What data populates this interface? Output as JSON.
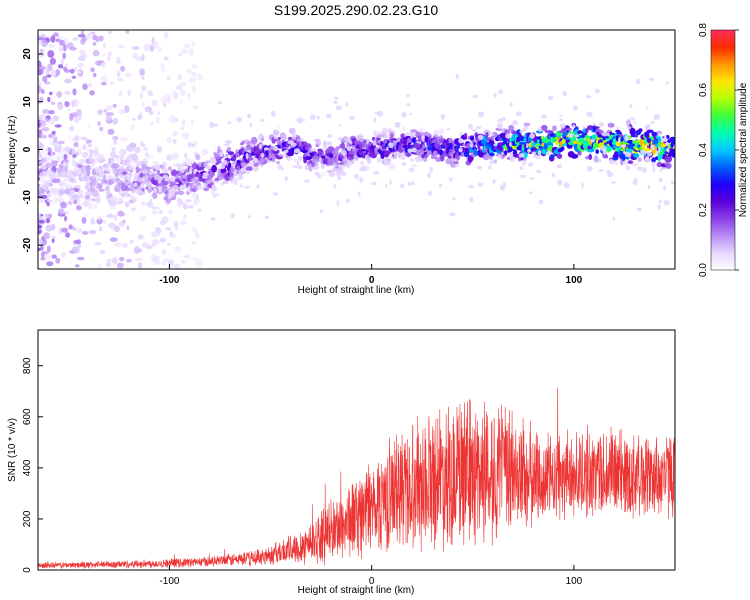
{
  "figure": {
    "title": "S199.2025.290.02.23.G10"
  },
  "chart_data": [
    {
      "type": "heatmap",
      "xlabel": "Height of straight line (km)",
      "ylabel": "Frequency (Hz)",
      "xlim": [
        -165,
        150
      ],
      "ylim": [
        -25,
        25
      ],
      "xticks": [
        -100,
        0,
        100
      ],
      "yticks": [
        -20,
        -10,
        0,
        10,
        20
      ],
      "colorbar": {
        "label": "Normalized spectral amplitude",
        "range": [
          0,
          0.8
        ],
        "ticks": [
          "0.0",
          "0.2",
          "0.4",
          "0.6",
          "0.8"
        ],
        "colormap": [
          "#ffffff",
          "#e6d7ff",
          "#b98cf6",
          "#8a3fe8",
          "#5a00d8",
          "#2000ff",
          "#0060ff",
          "#00c8ff",
          "#00ffb0",
          "#3cff3c",
          "#b4ff00",
          "#ffe600",
          "#ff9600",
          "#ff2a00",
          "#ff3060"
        ]
      },
      "ridge": {
        "x": [
          -165,
          -130,
          -100,
          -80,
          -70,
          -60,
          -50,
          -40,
          -30,
          -20,
          -10,
          0,
          20,
          40,
          60,
          80,
          100,
          120,
          140,
          150
        ],
        "freq": [
          -5,
          -6,
          -7,
          -5,
          -3,
          -1,
          0,
          1,
          -1,
          -2,
          0,
          0,
          1,
          0,
          1,
          1,
          2,
          1,
          1,
          -1
        ],
        "peak_amplitude": [
          0.05,
          0.12,
          0.2,
          0.22,
          0.25,
          0.25,
          0.26,
          0.28,
          0.25,
          0.22,
          0.24,
          0.27,
          0.3,
          0.32,
          0.45,
          0.6,
          0.65,
          0.55,
          0.75,
          0.5
        ]
      }
    },
    {
      "type": "line",
      "xlabel": "Height of straight line (km)",
      "ylabel": "SNR (10 * v/v)",
      "xlim": [
        -165,
        150
      ],
      "ylim": [
        0,
        940
      ],
      "xticks": [
        -100,
        0,
        100
      ],
      "yticks": [
        0,
        200,
        400,
        600,
        800
      ],
      "color": "#ee3333",
      "envelope": {
        "x": [
          -165,
          -140,
          -120,
          -100,
          -80,
          -60,
          -50,
          -40,
          -30,
          -20,
          -10,
          0,
          10,
          20,
          30,
          40,
          50,
          60,
          70,
          80,
          90,
          100,
          110,
          120,
          130,
          140,
          150
        ],
        "mean": [
          18,
          20,
          23,
          27,
          33,
          45,
          60,
          80,
          110,
          150,
          200,
          250,
          300,
          340,
          370,
          380,
          380,
          390,
          380,
          360,
          360,
          370,
          380,
          380,
          370,
          370,
          370
        ],
        "spread": [
          12,
          14,
          16,
          18,
          20,
          30,
          40,
          60,
          90,
          120,
          160,
          190,
          230,
          260,
          280,
          300,
          300,
          290,
          260,
          200,
          170,
          170,
          180,
          190,
          170,
          170,
          170
        ]
      }
    }
  ]
}
